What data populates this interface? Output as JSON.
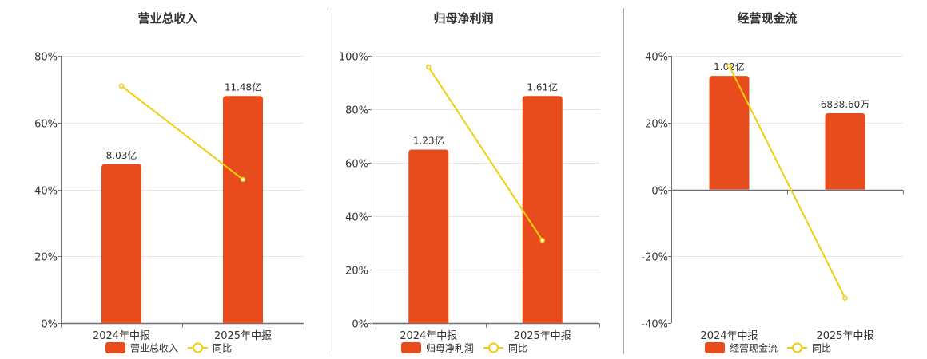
{
  "colors": {
    "bar": "#e84c1c",
    "line": "#f2cd0a",
    "grid": "#e3e6ef",
    "axis": "#6e7079",
    "separator": "#aaaaaa"
  },
  "chart_data": [
    {
      "type": "bar+line",
      "title": "营业总收入",
      "categories": [
        "2024年中报",
        "2025年中报"
      ],
      "bar_series": {
        "name": "营业总收入",
        "values": [
          8.03,
          11.48
        ],
        "unit": "亿",
        "labels": [
          "8.03亿",
          "11.48亿"
        ]
      },
      "line_series": {
        "name": "同比",
        "values": [
          71.0,
          43.0
        ],
        "unit": "%"
      },
      "y_ticks": [
        "0%",
        "20%",
        "40%",
        "60%",
        "80%"
      ],
      "ylim": [
        0,
        80
      ],
      "grid": true,
      "legend": "bottom"
    },
    {
      "type": "bar+line",
      "title": "归母净利润",
      "categories": [
        "2024年中报",
        "2025年中报"
      ],
      "bar_series": {
        "name": "归母净利润",
        "values": [
          1.23,
          1.61
        ],
        "unit": "亿",
        "labels": [
          "1.23亿",
          "1.61亿"
        ]
      },
      "line_series": {
        "name": "同比",
        "values": [
          95.8,
          31.0
        ],
        "unit": "%"
      },
      "y_ticks": [
        "0%",
        "20%",
        "40%",
        "60%",
        "80%",
        "100%"
      ],
      "ylim": [
        0,
        100
      ],
      "grid": true,
      "legend": "bottom"
    },
    {
      "type": "bar+line",
      "title": "经营现金流",
      "categories": [
        "2024年中报",
        "2025年中报"
      ],
      "bar_series": {
        "name": "经营现金流",
        "values": [
          1.02,
          0.68386
        ],
        "unit": "亿",
        "labels": [
          "1.02亿",
          "6838.60万"
        ]
      },
      "line_series": {
        "name": "同比",
        "values": [
          37.0,
          -32.5
        ],
        "unit": "%"
      },
      "y_ticks": [
        "-40%",
        "-20%",
        "0%",
        "20%",
        "40%"
      ],
      "ylim": [
        -40,
        40
      ],
      "grid": true,
      "legend": "bottom"
    }
  ]
}
